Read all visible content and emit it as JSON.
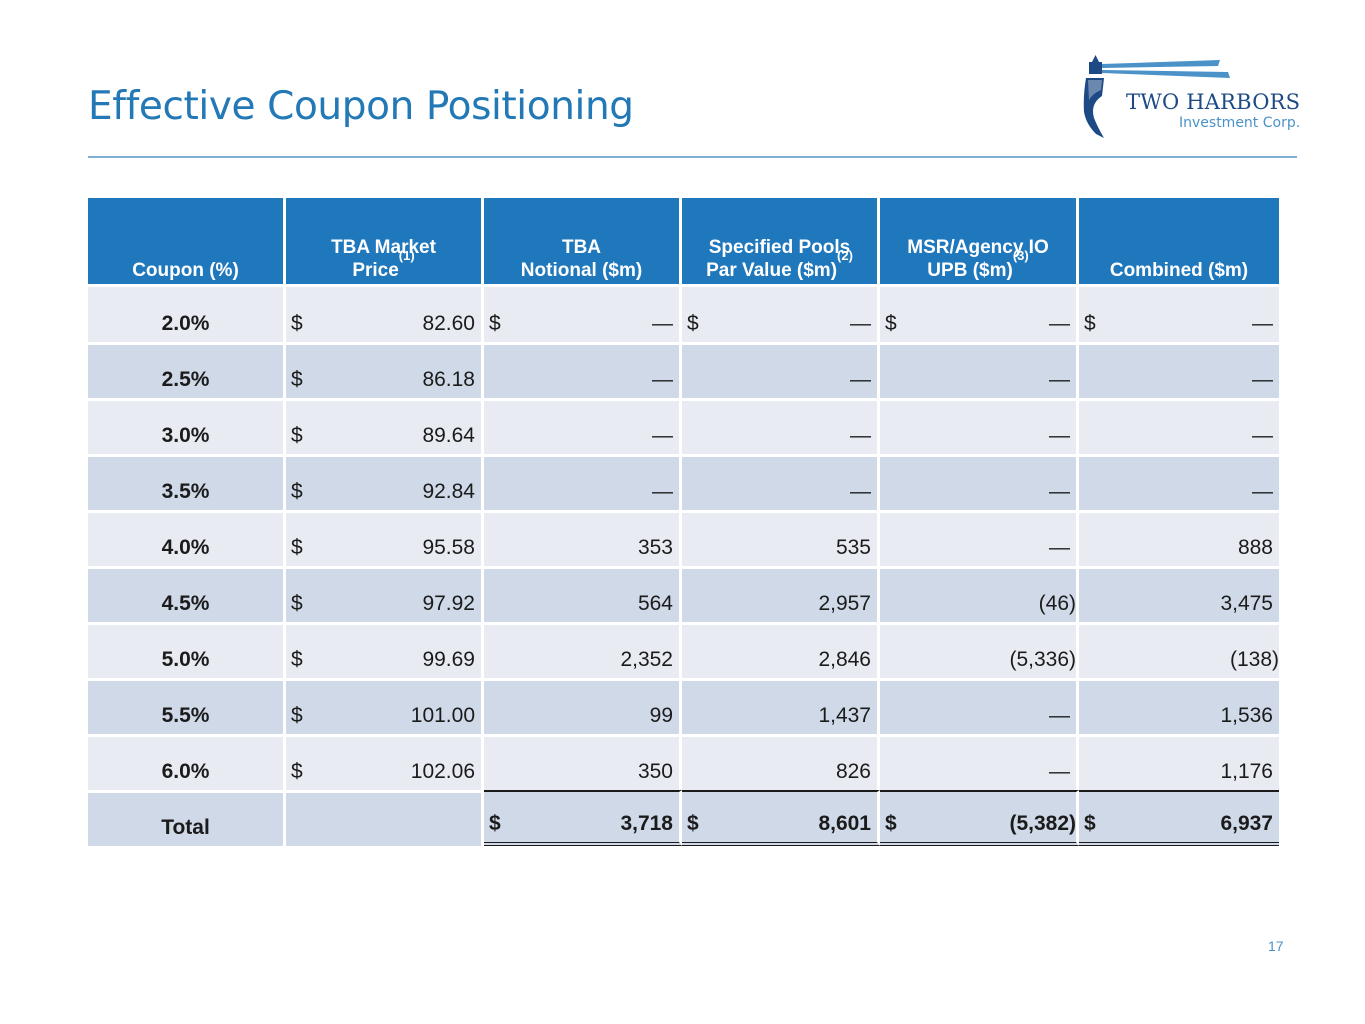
{
  "title": "Effective Coupon Positioning",
  "logo": {
    "name": "TWO HARBORS",
    "sub": "Investment Corp."
  },
  "page_number": "17",
  "table": {
    "headers": [
      {
        "text": "Coupon (%)",
        "sup": ""
      },
      {
        "text": "TBA Market\nPrice",
        "sup": "(1)"
      },
      {
        "text": "TBA\nNotional ($m)",
        "sup": ""
      },
      {
        "text": "Specified Pools\nPar Value ($m)",
        "sup": "(2)"
      },
      {
        "text": "MSR/Agency IO\nUPB ($m)",
        "sup": "(3)"
      },
      {
        "text": "Combined ($m)",
        "sup": ""
      }
    ],
    "currency": "$",
    "rows": [
      {
        "coupon": "2.0",
        "pct": "%",
        "price": "82.60",
        "tba": "—",
        "spec": "—",
        "msr": "—",
        "combined": "—"
      },
      {
        "coupon": "2.5",
        "pct": "%",
        "price": "86.18",
        "tba": "—",
        "spec": "—",
        "msr": "—",
        "combined": "—"
      },
      {
        "coupon": "3.0",
        "pct": "%",
        "price": "89.64",
        "tba": "—",
        "spec": "—",
        "msr": "—",
        "combined": "—"
      },
      {
        "coupon": "3.5",
        "pct": "%",
        "price": "92.84",
        "tba": "—",
        "spec": "—",
        "msr": "—",
        "combined": "—"
      },
      {
        "coupon": "4.0",
        "pct": "%",
        "price": "95.58",
        "tba": "353",
        "spec": "535",
        "msr": "—",
        "combined": "888"
      },
      {
        "coupon": "4.5",
        "pct": "%",
        "price": "97.92",
        "tba": "564",
        "spec": "2,957",
        "msr": "(46)",
        "combined": "3,475"
      },
      {
        "coupon": "5.0",
        "pct": "%",
        "price": "99.69",
        "tba": "2,352",
        "spec": "2,846",
        "msr": "(5,336)",
        "combined": "(138)"
      },
      {
        "coupon": "5.5",
        "pct": "%",
        "price": "101.00",
        "tba": "99",
        "spec": "1,437",
        "msr": "—",
        "combined": "1,536"
      },
      {
        "coupon": "6.0",
        "pct": "%",
        "price": "102.06",
        "tba": "350",
        "spec": "826",
        "msr": "—",
        "combined": "1,176"
      }
    ],
    "total": {
      "label": "Total",
      "tba": "3,718",
      "spec": "8,601",
      "msr": "(5,382)",
      "combined": "6,937"
    }
  }
}
